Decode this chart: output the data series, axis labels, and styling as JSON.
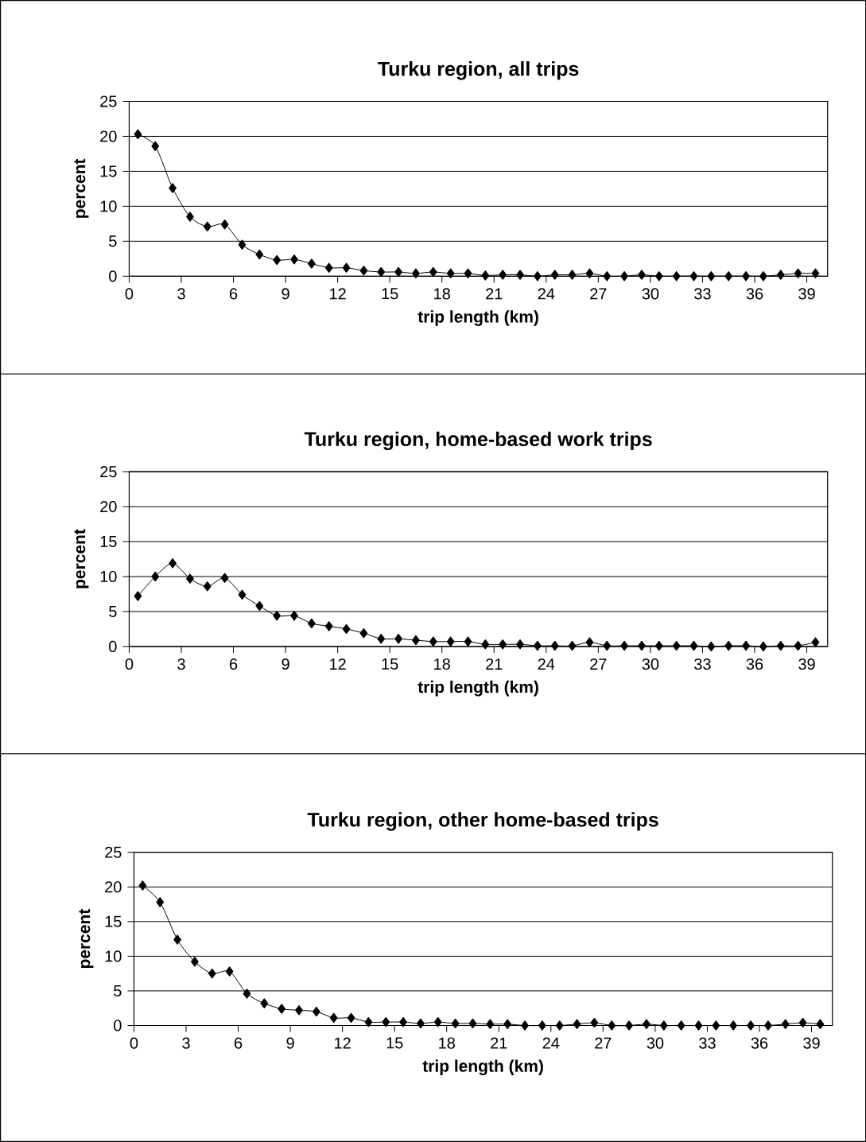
{
  "chart_data": [
    {
      "type": "line",
      "title": "Turku region, all trips",
      "xlabel": "trip length (km)",
      "ylabel": "percent",
      "x": [
        0.5,
        1.5,
        2.5,
        3.5,
        4.5,
        5.5,
        6.5,
        7.5,
        8.5,
        9.5,
        10.5,
        11.5,
        12.5,
        13.5,
        14.5,
        15.5,
        16.5,
        17.5,
        18.5,
        19.5,
        20.5,
        21.5,
        22.5,
        23.5,
        24.5,
        25.5,
        26.5,
        27.5,
        28.5,
        29.5,
        30.5,
        31.5,
        32.5,
        33.5,
        34.5,
        35.5,
        36.5,
        37.5,
        38.5,
        39.5
      ],
      "series": [
        {
          "color": "#000000",
          "values": [
            20.3,
            18.6,
            12.6,
            8.5,
            7.1,
            7.4,
            4.5,
            3.1,
            2.3,
            2.4,
            1.8,
            1.2,
            1.2,
            0.8,
            0.6,
            0.6,
            0.4,
            0.6,
            0.4,
            0.4,
            0.1,
            0.2,
            0.2,
            0,
            0.2,
            0.2,
            0.4,
            0,
            0,
            0.2,
            0,
            0,
            0,
            0,
            0,
            0,
            0,
            0.2,
            0.4,
            0.4
          ]
        }
      ],
      "xlim": [
        0,
        40.2
      ],
      "xticks": [
        0,
        3,
        6,
        9,
        12,
        15,
        18,
        21,
        24,
        27,
        30,
        33,
        36,
        39
      ],
      "ylim": [
        0,
        25
      ],
      "yticks": [
        0,
        5,
        10,
        15,
        20,
        25
      ],
      "grid": "y",
      "marker": "diamond"
    },
    {
      "type": "line",
      "title": "Turku region, home-based work trips",
      "xlabel": "trip length (km)",
      "ylabel": "percent",
      "x": [
        0.5,
        1.5,
        2.5,
        3.5,
        4.5,
        5.5,
        6.5,
        7.5,
        8.5,
        9.5,
        10.5,
        11.5,
        12.5,
        13.5,
        14.5,
        15.5,
        16.5,
        17.5,
        18.5,
        19.5,
        20.5,
        21.5,
        22.5,
        23.5,
        24.5,
        25.5,
        26.5,
        27.5,
        28.5,
        29.5,
        30.5,
        31.5,
        32.5,
        33.5,
        34.5,
        35.5,
        36.5,
        37.5,
        38.5,
        39.5
      ],
      "series": [
        {
          "color": "#000000",
          "values": [
            7.2,
            10.0,
            11.9,
            9.7,
            8.6,
            9.8,
            7.4,
            5.8,
            4.4,
            4.4,
            3.3,
            2.9,
            2.5,
            1.9,
            1.1,
            1.1,
            0.9,
            0.7,
            0.7,
            0.7,
            0.3,
            0.3,
            0.3,
            0.1,
            0.1,
            0.1,
            0.6,
            0.1,
            0.1,
            0.1,
            0.1,
            0.1,
            0.1,
            0,
            0.1,
            0.1,
            0,
            0.1,
            0.1,
            0.6
          ]
        }
      ],
      "xlim": [
        0,
        40.2
      ],
      "xticks": [
        0,
        3,
        6,
        9,
        12,
        15,
        18,
        21,
        24,
        27,
        30,
        33,
        36,
        39
      ],
      "ylim": [
        0,
        25
      ],
      "yticks": [
        0,
        5,
        10,
        15,
        20,
        25
      ],
      "grid": "y",
      "marker": "diamond"
    },
    {
      "type": "line",
      "title": "Turku region, other home-based trips",
      "xlabel": "trip length (km)",
      "ylabel": "percent",
      "x": [
        0.5,
        1.5,
        2.5,
        3.5,
        4.5,
        5.5,
        6.5,
        7.5,
        8.5,
        9.5,
        10.5,
        11.5,
        12.5,
        13.5,
        14.5,
        15.5,
        16.5,
        17.5,
        18.5,
        19.5,
        20.5,
        21.5,
        22.5,
        23.5,
        24.5,
        25.5,
        26.5,
        27.5,
        28.5,
        29.5,
        30.5,
        31.5,
        32.5,
        33.5,
        34.5,
        35.5,
        36.5,
        37.5,
        38.5,
        39.5
      ],
      "series": [
        {
          "color": "#000000",
          "values": [
            20.2,
            17.8,
            12.4,
            9.2,
            7.5,
            7.8,
            4.6,
            3.2,
            2.4,
            2.2,
            2.0,
            1.1,
            1.1,
            0.5,
            0.5,
            0.5,
            0.3,
            0.5,
            0.3,
            0.3,
            0.2,
            0.2,
            0,
            0,
            0,
            0.2,
            0.4,
            0,
            0,
            0.2,
            0,
            0,
            0,
            0,
            0,
            0,
            0,
            0.2,
            0.4,
            0.2
          ]
        }
      ],
      "xlim": [
        0,
        40.2
      ],
      "xticks": [
        0,
        3,
        6,
        9,
        12,
        15,
        18,
        21,
        24,
        27,
        30,
        33,
        36,
        39
      ],
      "ylim": [
        0,
        25
      ],
      "yticks": [
        0,
        5,
        10,
        15,
        20,
        25
      ],
      "grid": "y",
      "marker": "diamond"
    }
  ]
}
